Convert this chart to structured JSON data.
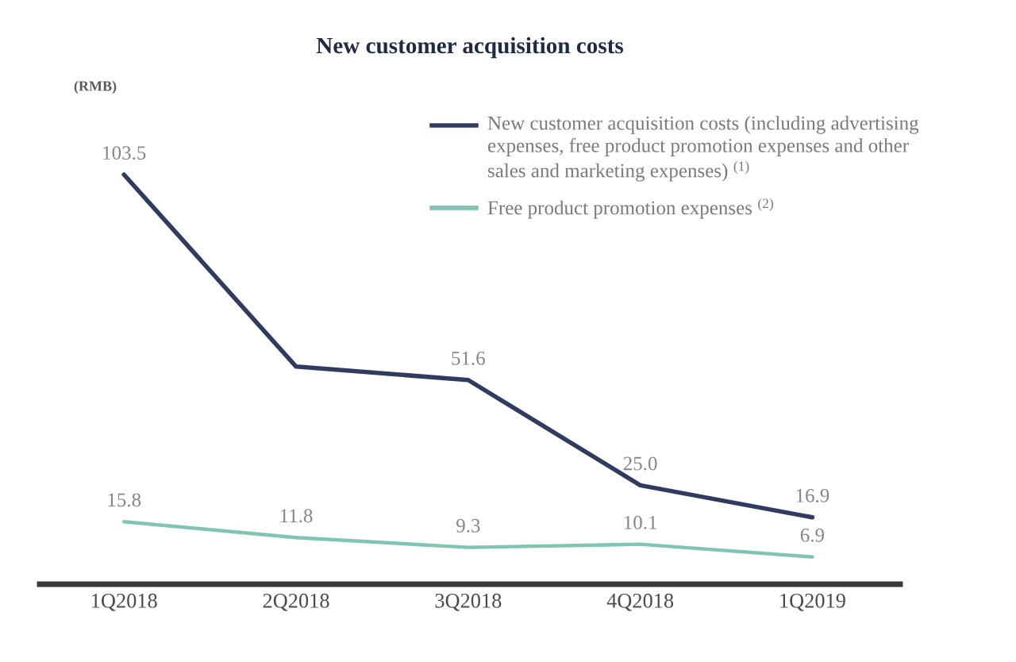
{
  "chart_data": {
    "type": "line",
    "title": "New customer acquisition costs",
    "annotations": [
      "(RMB)"
    ],
    "categories": [
      "1Q2018",
      "2Q2018",
      "3Q2018",
      "4Q2018",
      "1Q2019"
    ],
    "series": [
      {
        "name": "New customer acquisition costs (including advertising expenses, free product promotion expenses and other sales and marketing expenses) $^{(1)}$",
        "color": "#2f3c5f",
        "values": [
          103.5,
          55,
          51.6,
          25.0,
          16.9
        ],
        "value_labels": [
          "103.5",
          null,
          "51.6",
          "25.0",
          "16.9"
        ]
      },
      {
        "name": "Free product promotion expenses $^{(2)}$",
        "color": "#7fc4b4",
        "values": [
          15.8,
          11.8,
          9.3,
          10.1,
          6.9
        ],
        "value_labels": [
          "15.8",
          "11.8",
          "9.3",
          "10.1",
          "6.9"
        ]
      }
    ],
    "legend": "top right"
  }
}
